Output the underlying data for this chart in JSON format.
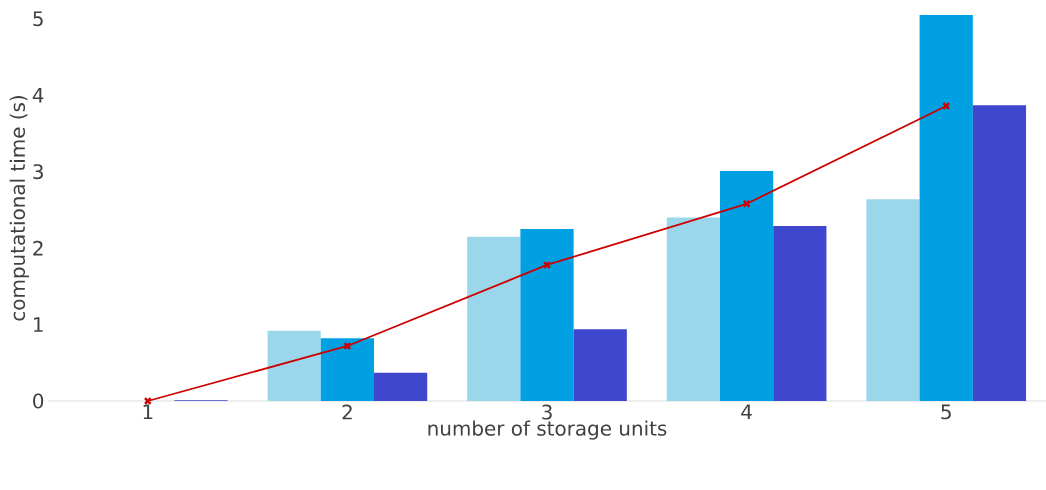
{
  "chart_data": {
    "type": "bar",
    "xlabel": "number of storage units",
    "ylabel": "computational time (s)",
    "categories": [
      "1",
      "2",
      "3",
      "4",
      "5"
    ],
    "series": [
      {
        "color": "#9bd7ea",
        "values": [
          0,
          0.92,
          2.15,
          2.4,
          2.64
        ]
      },
      {
        "color": "#00a0e3",
        "values": [
          0,
          0.82,
          2.25,
          3.01,
          5.05
        ]
      },
      {
        "color": "#3f48cc",
        "values": [
          0.01,
          0.37,
          0.94,
          2.29,
          3.87
        ]
      },
      {
        "type": "line",
        "color": "#cc0000",
        "values": [
          0,
          0.72,
          1.78,
          2.58,
          3.86
        ]
      }
    ],
    "ylim": [
      0,
      5.05
    ],
    "yticks": [
      0,
      1,
      2,
      3,
      4,
      5
    ],
    "grid": false,
    "marker": "cross"
  }
}
